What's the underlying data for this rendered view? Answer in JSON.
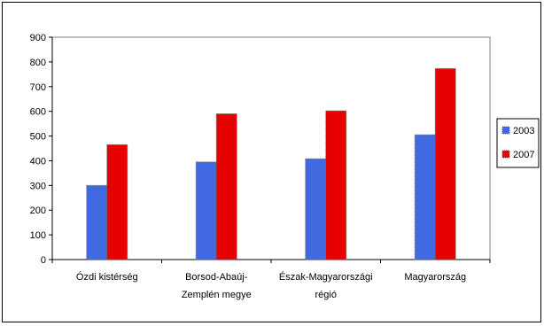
{
  "chart_data": {
    "type": "bar",
    "categories": [
      "Ózdi kistérség",
      "Borsod-Abaúj-Zemplén megye",
      "Észak-Magyarországi régió",
      "Magyarország"
    ],
    "category_label_lines": [
      [
        "Ózdi kistérség"
      ],
      [
        "Borsod-Abaúj-",
        "Zemplén megye"
      ],
      [
        "Észak-Magyarországi",
        "régió"
      ],
      [
        "Magyarország"
      ]
    ],
    "series": [
      {
        "name": "2003",
        "values": [
          300,
          395,
          408,
          505
        ],
        "color": "#4169E1"
      },
      {
        "name": "2007",
        "values": [
          465,
          590,
          602,
          773
        ],
        "color": "#E60000"
      }
    ],
    "ylim": [
      0,
      900
    ],
    "yticks": [
      0,
      100,
      200,
      300,
      400,
      500,
      600,
      700,
      800,
      900
    ],
    "plot_background": "#C0C0C0",
    "grid": false,
    "legend_position": "right",
    "title": "",
    "xlabel": "",
    "ylabel": ""
  }
}
